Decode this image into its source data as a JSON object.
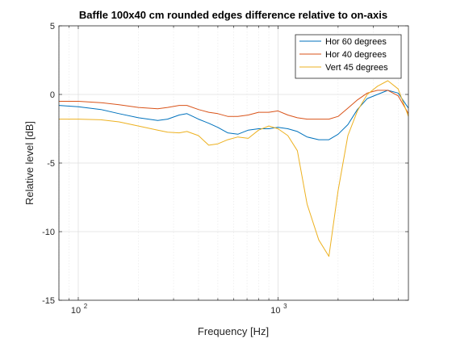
{
  "chart_data": {
    "type": "line",
    "title": "Baffle 100x40 cm rounded edges difference relative to on-axis",
    "xlabel": "Frequency [Hz]",
    "ylabel": "Relative level [dB]",
    "xscale": "log",
    "xlim": [
      80,
      4500
    ],
    "ylim": [
      -15,
      5
    ],
    "yticks": [
      5,
      0,
      -5,
      -10,
      -15
    ],
    "ytick_labels": [
      "5",
      "0",
      "-5",
      "-10",
      "-15"
    ],
    "xticks_major": [
      100,
      1000
    ],
    "xtick_labels": [
      {
        "base": "10",
        "exp": "2"
      },
      {
        "base": "10",
        "exp": "3"
      }
    ],
    "grid": true,
    "legend_position": "top-right",
    "series": [
      {
        "name": "Hor 60 degrees",
        "color": "#0072BD",
        "x": [
          80,
          100,
          130,
          160,
          200,
          250,
          280,
          320,
          350,
          400,
          450,
          500,
          560,
          630,
          710,
          800,
          900,
          1000,
          1120,
          1250,
          1400,
          1600,
          1800,
          2000,
          2240,
          2500,
          2800,
          3150,
          3550,
          4000,
          4500
        ],
        "y": [
          -0.8,
          -0.9,
          -1.1,
          -1.4,
          -1.7,
          -1.9,
          -1.8,
          -1.5,
          -1.4,
          -1.8,
          -2.1,
          -2.4,
          -2.8,
          -2.9,
          -2.6,
          -2.5,
          -2.5,
          -2.4,
          -2.5,
          -2.7,
          -3.1,
          -3.3,
          -3.3,
          -2.9,
          -2.2,
          -1.1,
          -0.3,
          0.0,
          0.3,
          0.1,
          -1.0
        ]
      },
      {
        "name": "Hor 40 degrees",
        "color": "#D95319",
        "x": [
          80,
          100,
          130,
          160,
          200,
          250,
          280,
          320,
          350,
          400,
          450,
          500,
          560,
          630,
          710,
          800,
          900,
          1000,
          1120,
          1250,
          1400,
          1600,
          1800,
          2000,
          2240,
          2500,
          2800,
          3150,
          3550,
          4000,
          4500
        ],
        "y": [
          -0.5,
          -0.5,
          -0.6,
          -0.75,
          -0.95,
          -1.05,
          -0.95,
          -0.8,
          -0.8,
          -1.1,
          -1.3,
          -1.4,
          -1.6,
          -1.6,
          -1.5,
          -1.3,
          -1.3,
          -1.2,
          -1.5,
          -1.7,
          -1.8,
          -1.8,
          -1.8,
          -1.6,
          -1.0,
          -0.4,
          0.1,
          0.3,
          0.3,
          -0.1,
          -1.4
        ]
      },
      {
        "name": "Vert 45 degrees",
        "color": "#EDB120",
        "x": [
          80,
          100,
          130,
          160,
          200,
          250,
          280,
          320,
          350,
          400,
          450,
          500,
          560,
          630,
          710,
          800,
          900,
          1000,
          1120,
          1250,
          1400,
          1600,
          1800,
          2000,
          2240,
          2500,
          2800,
          3150,
          3550,
          4000,
          4500
        ],
        "y": [
          -1.8,
          -1.8,
          -1.85,
          -2.0,
          -2.3,
          -2.6,
          -2.75,
          -2.8,
          -2.7,
          -3.0,
          -3.7,
          -3.6,
          -3.3,
          -3.1,
          -3.2,
          -2.6,
          -2.3,
          -2.5,
          -3.0,
          -4.1,
          -8.0,
          -10.6,
          -11.8,
          -7.0,
          -3.0,
          -1.2,
          0.0,
          0.6,
          1.0,
          0.4,
          -1.6
        ]
      }
    ]
  }
}
